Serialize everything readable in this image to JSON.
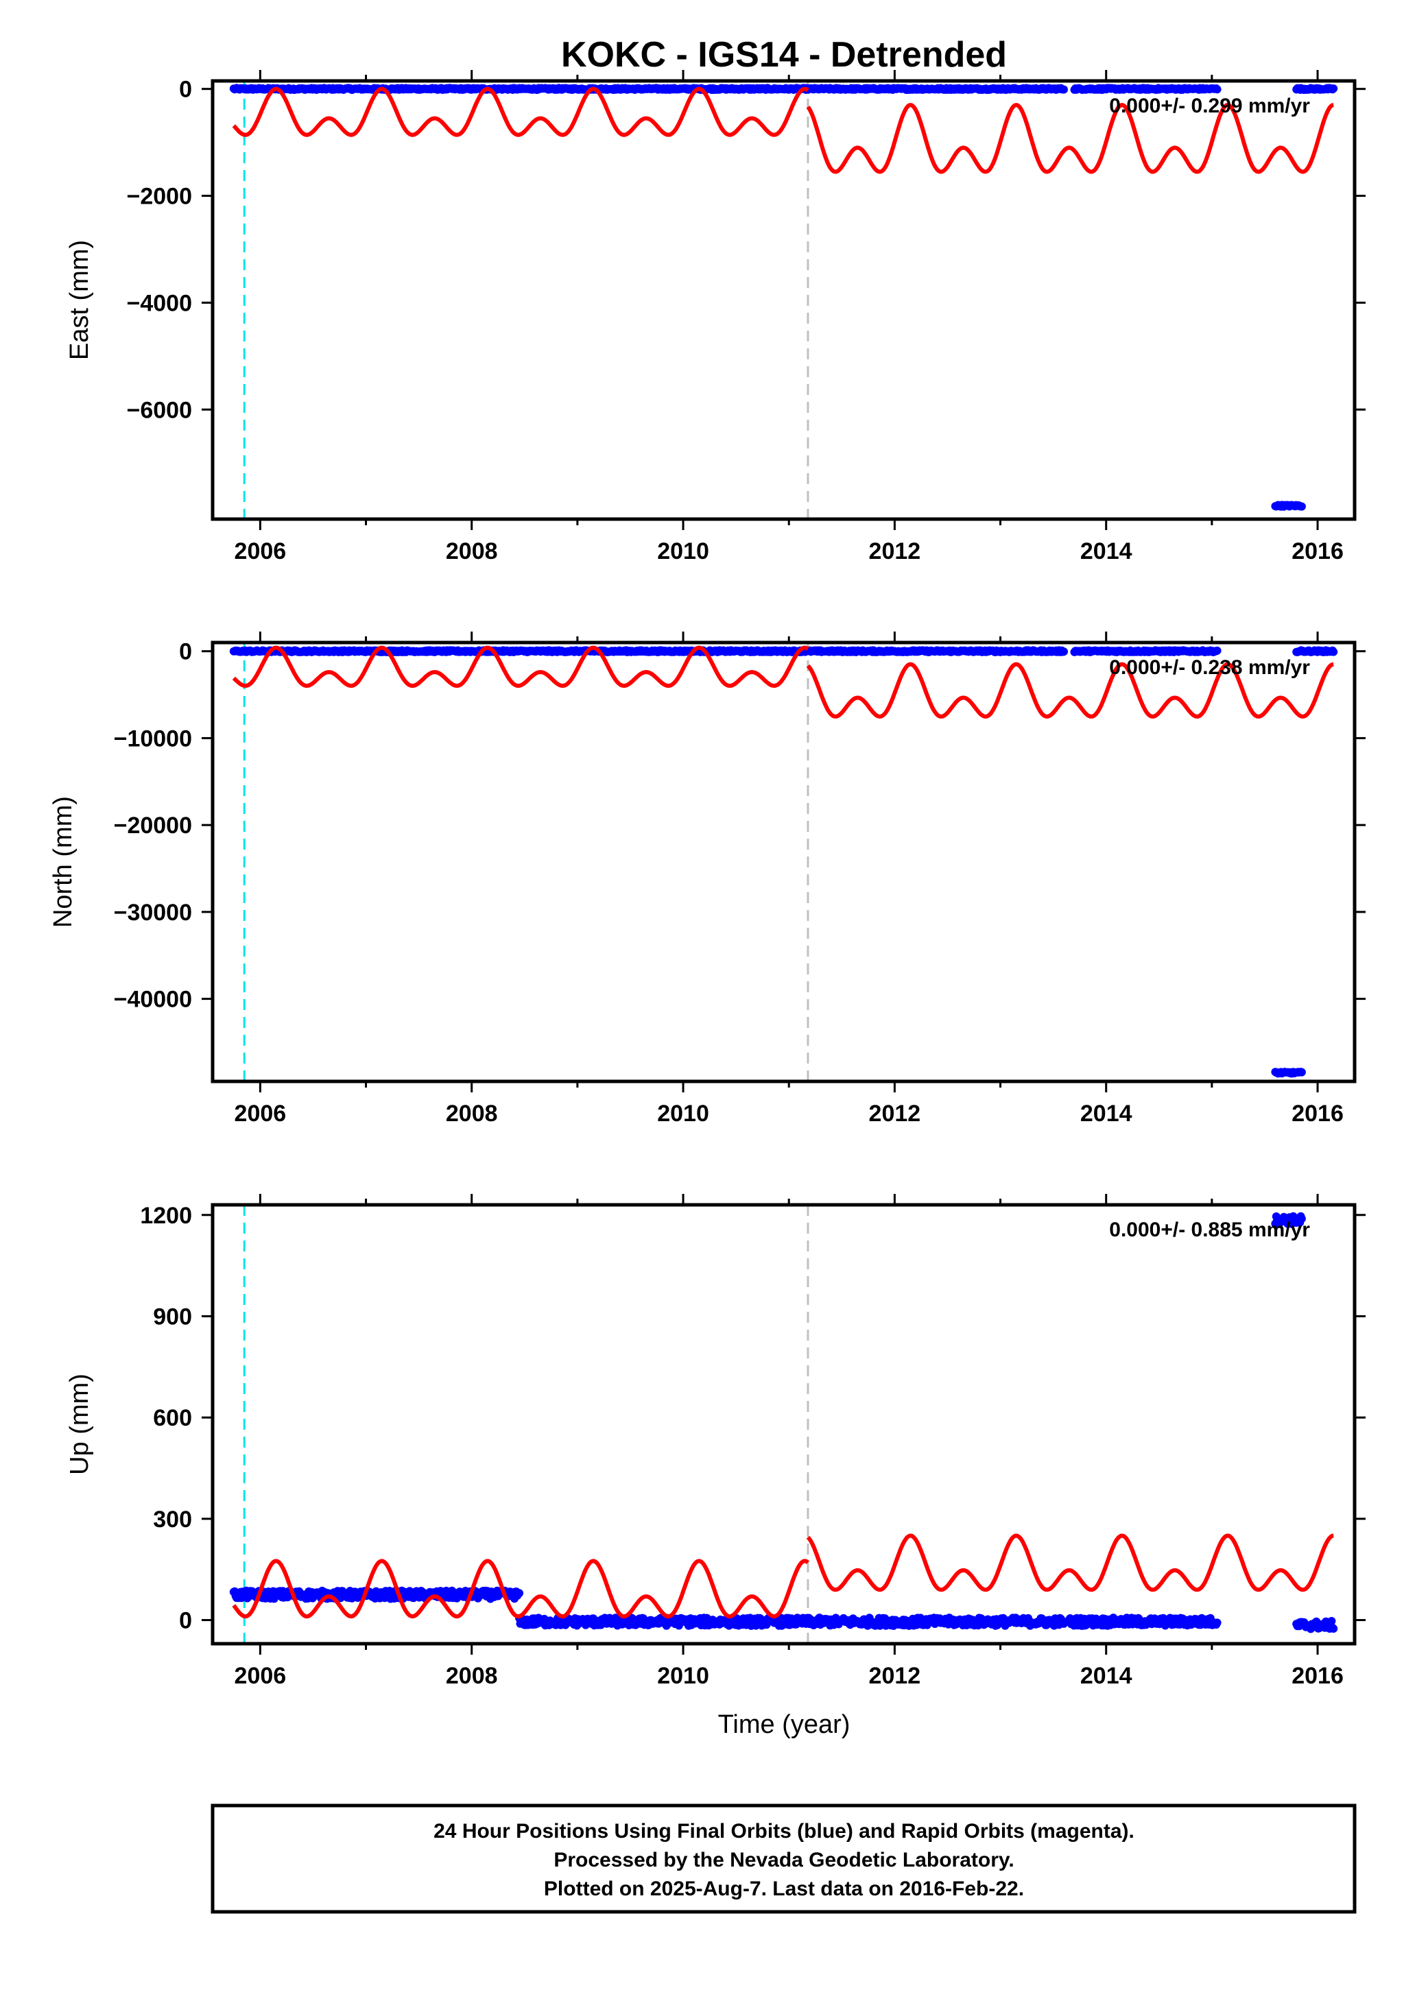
{
  "title": "KOKC - IGS14 - Detrended",
  "xlabel": "Time (year)",
  "footer": {
    "line1": "24 Hour Positions Using Final Orbits (blue) and Rapid Orbits (magenta).",
    "line2": "Processed by the Nevada Geodetic Laboratory.",
    "line3": "Plotted on 2025-Aug-7. Last data on 2016-Feb-22."
  },
  "colors": {
    "final_orbit_points": "#0000ff",
    "model_fit": "#ff0000",
    "antenna_change_line": "#00e5e5",
    "equipment_change_line": "#c0c0c0"
  },
  "chart_data": [
    {
      "type": "scatter",
      "component": "East",
      "ylabel": "East (mm)",
      "rate_text": "0.000+/- 0.299 mm/yr",
      "xlim": [
        2005.55,
        2016.35
      ],
      "ylim": [
        -8050,
        150
      ],
      "xticks": [
        2006,
        2008,
        2010,
        2012,
        2014,
        2016
      ],
      "yticks": [
        0,
        -2000,
        -4000,
        -6000
      ],
      "ytick_labels": [
        "0",
        "−2000",
        "−4000",
        "−6000"
      ],
      "vertical_lines": [
        {
          "x": 2005.85,
          "color": "cyan"
        },
        {
          "x": 2011.18,
          "color": "gray"
        }
      ],
      "points_segments": [
        {
          "x0": 2005.75,
          "x1": 2013.6,
          "y": 0
        },
        {
          "x0": 2013.7,
          "x1": 2015.05,
          "y": 0
        },
        {
          "x0": 2015.6,
          "x1": 2015.85,
          "y": -7800
        },
        {
          "x0": 2015.8,
          "x1": 2016.15,
          "y": 0
        }
      ],
      "model": {
        "segments": [
          {
            "x0": 2005.75,
            "x1": 2011.18,
            "low": -1100,
            "high": 0
          },
          {
            "x0": 2011.18,
            "x1": 2016.15,
            "low": -1900,
            "high": -300
          }
        ]
      }
    },
    {
      "type": "scatter",
      "component": "North",
      "ylabel": "North (mm)",
      "rate_text": "0.000+/- 0.238 mm/yr",
      "xlim": [
        2005.55,
        2016.35
      ],
      "ylim": [
        -49500,
        1000
      ],
      "xticks": [
        2006,
        2008,
        2010,
        2012,
        2014,
        2016
      ],
      "yticks": [
        0,
        -10000,
        -20000,
        -30000,
        -40000
      ],
      "ytick_labels": [
        "0",
        "−10000",
        "−20000",
        "−30000",
        "−40000"
      ],
      "vertical_lines": [
        {
          "x": 2005.85,
          "color": "cyan"
        },
        {
          "x": 2011.18,
          "color": "gray"
        }
      ],
      "points_segments": [
        {
          "x0": 2005.75,
          "x1": 2013.6,
          "y": 0
        },
        {
          "x0": 2013.7,
          "x1": 2015.05,
          "y": 0
        },
        {
          "x0": 2015.6,
          "x1": 2015.85,
          "y": -48500
        },
        {
          "x0": 2015.8,
          "x1": 2016.15,
          "y": 0
        }
      ],
      "model": {
        "segments": [
          {
            "x0": 2005.75,
            "x1": 2011.18,
            "low": -5200,
            "high": 400
          },
          {
            "x0": 2011.18,
            "x1": 2016.15,
            "low": -9200,
            "high": -1500
          }
        ]
      }
    },
    {
      "type": "scatter",
      "component": "Up",
      "ylabel": "Up (mm)",
      "rate_text": "0.000+/- 0.885 mm/yr",
      "xlim": [
        2005.55,
        2016.35
      ],
      "ylim": [
        -70,
        1230
      ],
      "xticks": [
        2006,
        2008,
        2010,
        2012,
        2014,
        2016
      ],
      "yticks": [
        0,
        300,
        600,
        900,
        1200
      ],
      "ytick_labels": [
        "0",
        "300",
        "600",
        "900",
        "1200"
      ],
      "vertical_lines": [
        {
          "x": 2005.85,
          "color": "cyan"
        },
        {
          "x": 2011.18,
          "color": "gray"
        }
      ],
      "points_segments": [
        {
          "x0": 2005.75,
          "x1": 2008.45,
          "y": 75
        },
        {
          "x0": 2008.45,
          "x1": 2013.6,
          "y": -5
        },
        {
          "x0": 2013.65,
          "x1": 2015.05,
          "y": -5
        },
        {
          "x0": 2015.6,
          "x1": 2015.85,
          "y": 1185
        },
        {
          "x0": 2015.8,
          "x1": 2016.15,
          "y": -15
        }
      ],
      "model": {
        "segments": [
          {
            "x0": 2005.75,
            "x1": 2011.18,
            "low": -35,
            "high": 175
          },
          {
            "x0": 2011.18,
            "x1": 2016.15,
            "low": 45,
            "high": 250
          }
        ]
      }
    }
  ]
}
